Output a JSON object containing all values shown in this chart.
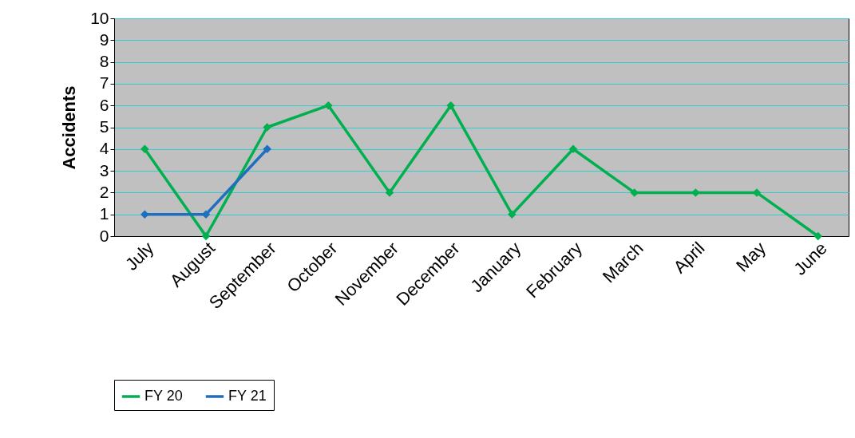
{
  "chart_data": {
    "type": "line",
    "ylabel": "Accidents",
    "categories": [
      "July",
      "August",
      "September",
      "October",
      "November",
      "December",
      "January",
      "February",
      "March",
      "April",
      "May",
      "June"
    ],
    "series": [
      {
        "name": "FY 20",
        "color": "#00b050",
        "values": [
          4,
          0,
          5,
          6,
          2,
          6,
          1,
          4,
          2,
          2,
          2,
          0
        ]
      },
      {
        "name": "FY 21",
        "color": "#1f6fc0",
        "values": [
          1,
          1,
          4,
          null,
          null,
          null,
          null,
          null,
          null,
          null,
          null,
          null
        ]
      }
    ],
    "ylim": [
      0,
      10
    ],
    "yticks": [
      0,
      1,
      2,
      3,
      4,
      5,
      6,
      7,
      8,
      9,
      10
    ],
    "grid": "y",
    "legend": "bottom",
    "marker": "diamond",
    "line_style": "solid"
  }
}
